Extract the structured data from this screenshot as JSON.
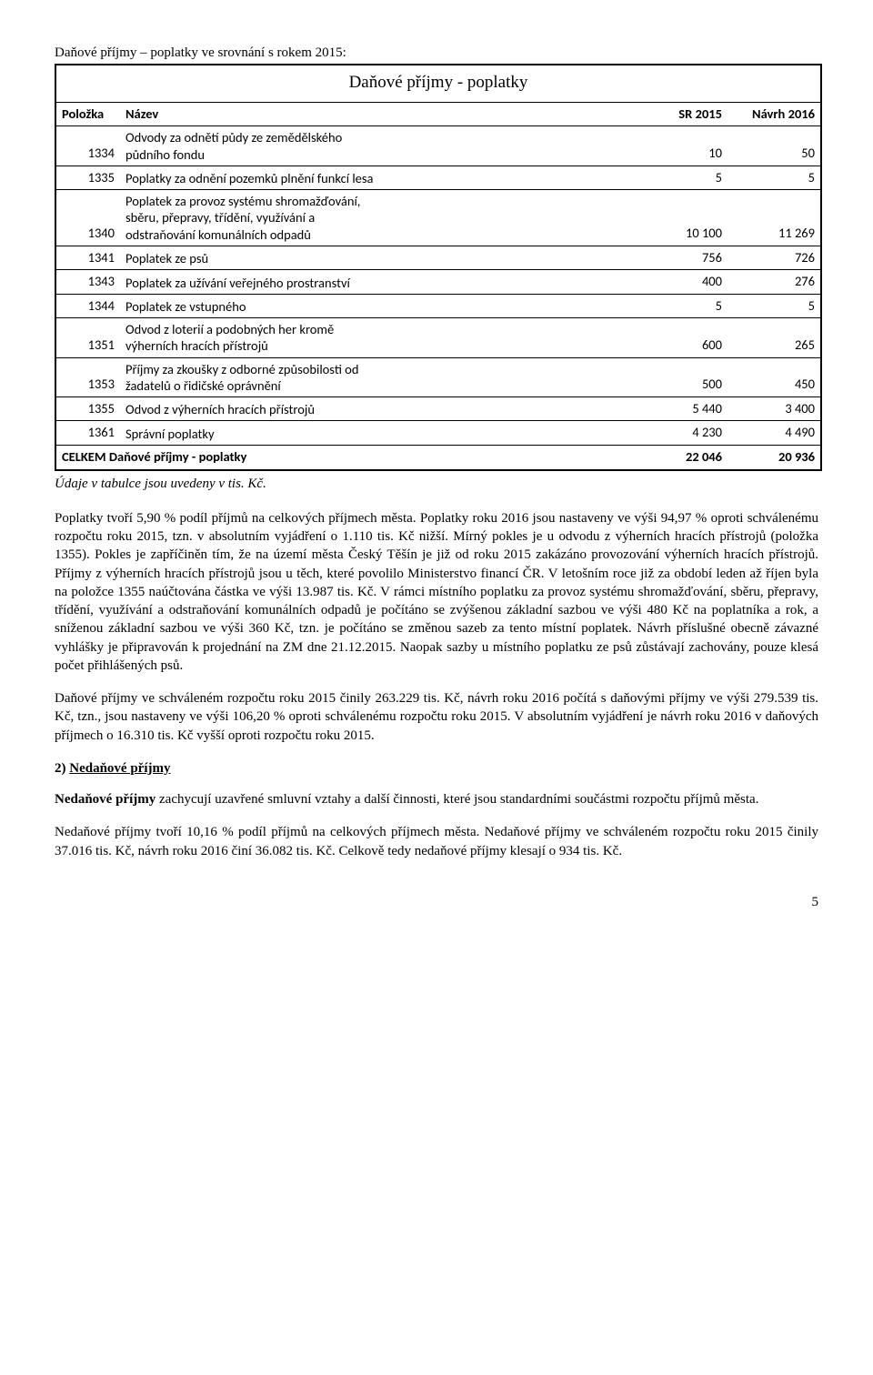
{
  "topLine": "Daňové příjmy – poplatky ve srovnání s rokem 2015:",
  "tableTitle": "Daňové příjmy - poplatky",
  "columns": {
    "c1": "Položka",
    "c2": "Název",
    "c3": "SR 2015",
    "c4": "Návrh 2016"
  },
  "rows": [
    {
      "code": "1334",
      "label": "Odvody za odnětí půdy ze zemědělského\npůdního fondu",
      "v1": "10",
      "v2": "50"
    },
    {
      "code": "1335",
      "label": "Poplatky za odnění pozemků plnění funkcí lesa",
      "v1": "5",
      "v2": "5"
    },
    {
      "code": "1340",
      "label": "Poplatek za provoz systému shromažďování,\nsběru, přepravy, třídění, využívání a\nodstraňování komunálních odpadů",
      "v1": "10 100",
      "v2": "11 269"
    },
    {
      "code": "1341",
      "label": "Poplatek ze psů",
      "v1": "756",
      "v2": "726"
    },
    {
      "code": "1343",
      "label": "Poplatek za užívání veřejného prostranství",
      "v1": "400",
      "v2": "276"
    },
    {
      "code": "1344",
      "label": "Poplatek ze vstupného",
      "v1": "5",
      "v2": "5"
    },
    {
      "code": "1351",
      "label": "Odvod z loterií a podobných her kromě\nvýherních hracích přístrojů",
      "v1": "600",
      "v2": "265"
    },
    {
      "code": "1353",
      "label": "Příjmy za zkoušky z odborné způsobilosti od\nžadatelů o řidičské oprávnění",
      "v1": "500",
      "v2": "450"
    },
    {
      "code": "1355",
      "label": "Odvod z výherních hracích přístrojů",
      "v1": "5 440",
      "v2": "3 400"
    },
    {
      "code": "1361",
      "label": "Správní poplatky",
      "v1": "4 230",
      "v2": "4 490"
    }
  ],
  "totals": {
    "label": "CELKEM Daňové příjmy - poplatky",
    "v1": "22 046",
    "v2": "20 936"
  },
  "note": "Údaje v tabulce jsou uvedeny v tis. Kč.",
  "para1": "Poplatky tvoří 5,90 % podíl příjmů na celkových příjmech města. Poplatky roku 2016 jsou nastaveny ve výši 94,97 % oproti schválenému rozpočtu roku 2015, tzn. v absolutním vyjádření o 1.110 tis. Kč nižší. Mírný pokles je u odvodu z výherních hracích přístrojů (položka 1355). Pokles je zapříčiněn tím, že na území města Český Těšín je již od roku 2015 zakázáno provozování výherních hracích přístrojů. Příjmy z výherních hracích přístrojů jsou u těch, které povolilo Ministerstvo financí ČR. V letošním roce již za období leden až říjen byla na položce 1355 naúčtována částka ve výši 13.987 tis. Kč. V rámci místního poplatku za provoz systému shromažďování, sběru, přepravy, třídění, využívání a odstraňování komunálních odpadů je počítáno se zvýšenou základní sazbou ve výši 480 Kč na poplatníka a rok, a sníženou základní sazbou ve výši 360 Kč, tzn. je počítáno se změnou sazeb za tento místní poplatek. Návrh příslušné obecně závazné vyhlášky je připravován k projednání na ZM dne 21.12.2015. Naopak sazby u místního poplatku ze psů zůstávají zachovány, pouze klesá počet přihlášených psů.",
  "para2": "Daňové příjmy ve schváleném rozpočtu roku 2015 činily 263.229 tis. Kč, návrh roku 2016 počítá s daňovými příjmy ve výši 279.539 tis. Kč, tzn., jsou nastaveny ve výši 106,20 % oproti schválenému rozpočtu roku 2015. V absolutním vyjádření je návrh roku 2016 v daňových příjmech o 16.310 tis. Kč vyšší oproti rozpočtu roku 2015.",
  "sectionHead": {
    "num": "2)",
    "title": "Nedaňové příjmy"
  },
  "para3a": "Nedaňové příjmy",
  "para3b": " zachycují uzavřené smluvní vztahy a další činnosti, které jsou standardními součástmi rozpočtu příjmů města.",
  "para4": "Nedaňové příjmy tvoří 10,16 % podíl příjmů na celkových příjmech města. Nedaňové příjmy ve schváleném rozpočtu roku 2015 činily 37.016 tis. Kč, návrh roku 2016 činí 36.082 tis. Kč. Celkově tedy nedaňové příjmy klesají o 934 tis. Kč.",
  "pageNum": "5"
}
